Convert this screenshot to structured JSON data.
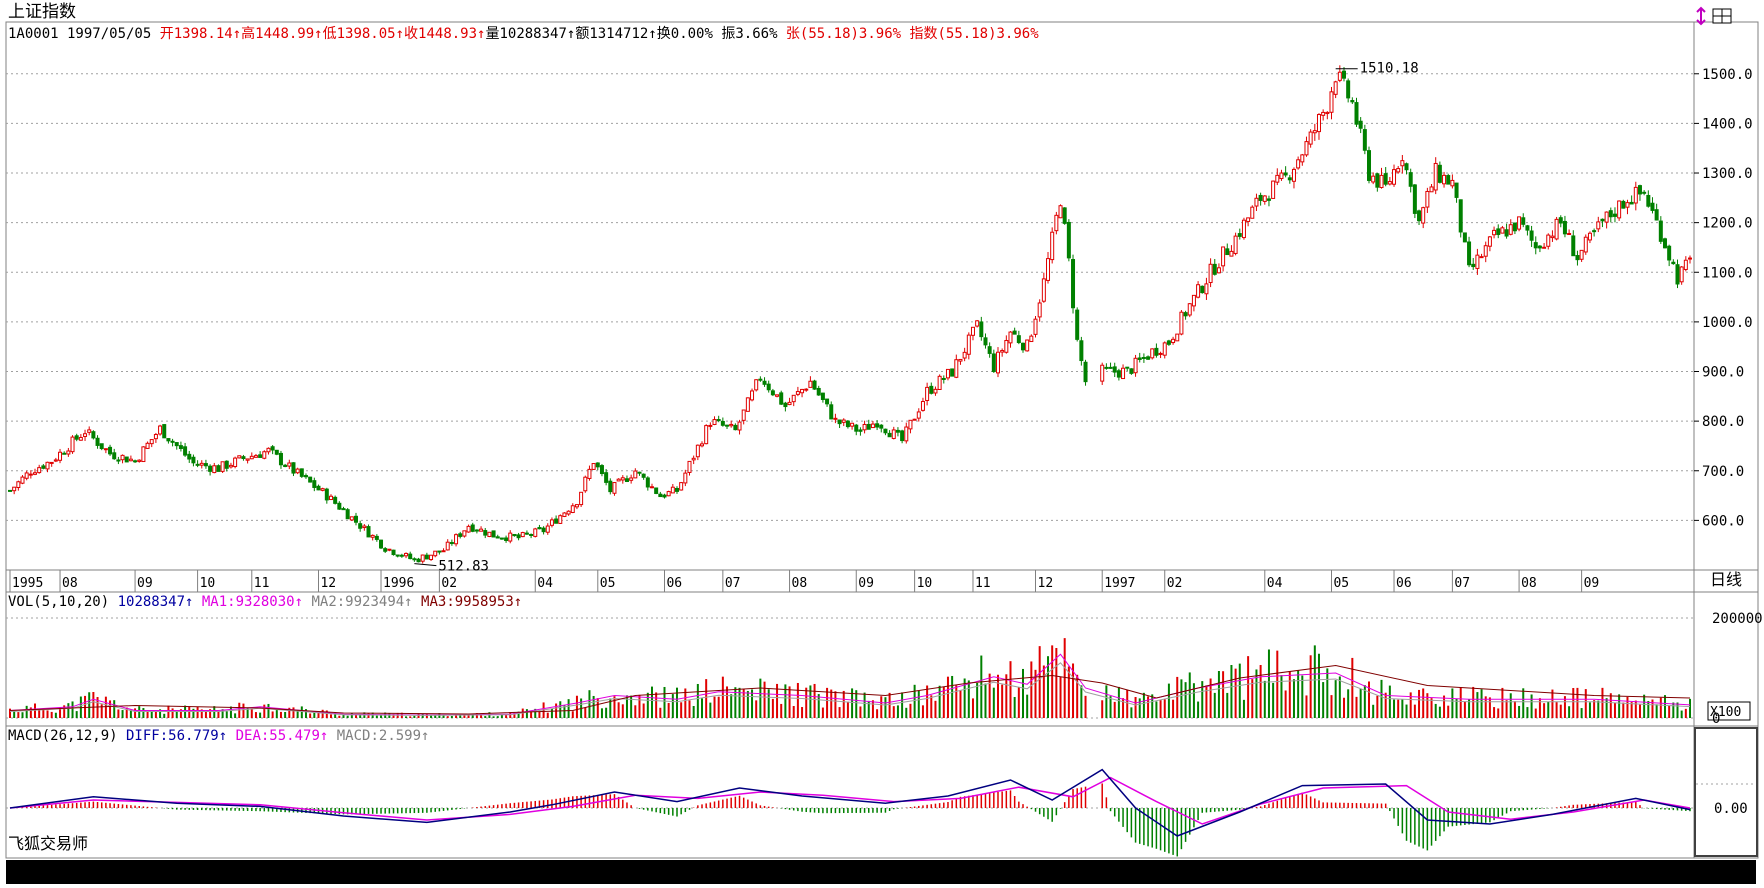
{
  "title": "上证指数",
  "info": [
    {
      "t": "1A0001 1997/05/05 ",
      "c": "k"
    },
    {
      "t": "开1398.14↑",
      "c": "r"
    },
    {
      "t": "高1448.99↑",
      "c": "r"
    },
    {
      "t": "低1398.05↑",
      "c": "r"
    },
    {
      "t": "收1448.93↑",
      "c": "r"
    },
    {
      "t": "量10288347↑",
      "c": "k"
    },
    {
      "t": "额1314712↑",
      "c": "k"
    },
    {
      "t": "换0.00%",
      "c": "k"
    },
    {
      "t": " 振3.66%",
      "c": "k"
    },
    {
      "t": " 张(55.18)3.96%",
      "c": "r"
    },
    {
      "t": " 指数(55.18)3.96%",
      "c": "r"
    }
  ],
  "vol_info": [
    {
      "t": "VOL(5,10,20)",
      "c": "k"
    },
    {
      "t": " 10288347↑",
      "c": "b"
    },
    {
      "t": " MA1:9328030↑",
      "c": "m"
    },
    {
      "t": " MA2:9923494↑",
      "c": "g"
    },
    {
      "t": " MA3:9958953↑",
      "c": "br"
    }
  ],
  "macd_info": [
    {
      "t": "MACD(26,12,9)",
      "c": "k"
    },
    {
      "t": " DIFF:56.779↑",
      "c": "b"
    },
    {
      "t": " DEA:55.479↑",
      "c": "m"
    },
    {
      "t": " MACD:2.599↑",
      "c": "g"
    }
  ],
  "brand": "飞狐交易师",
  "period_label": "日线",
  "volume_unit": "X100",
  "colors": {
    "up": "#e00000",
    "down": "#008000",
    "diff": "#000080",
    "dea": "#e000e0",
    "ma2": "#a0a0a0",
    "ma3": "#800000",
    "ma1": "#e000e0"
  },
  "chart_data": [
    {
      "type": "candlestick",
      "ylim": [
        500,
        1560
      ],
      "y_ticks": [
        "1500.0",
        "1400.0",
        "1300.0",
        "1200.0",
        "1100.0",
        "1000.0",
        "900.0",
        "800.0",
        "700.0",
        "600.0"
      ],
      "x_ticks": [
        {
          "label": "1995",
          "day": 0
        },
        {
          "label": "08",
          "day": 12
        },
        {
          "label": "09",
          "day": 30
        },
        {
          "label": "10",
          "day": 45
        },
        {
          "label": "11",
          "day": 58
        },
        {
          "label": "12",
          "day": 74
        },
        {
          "label": "1996",
          "day": 89
        },
        {
          "label": "02",
          "day": 103
        },
        {
          "label": "04",
          "day": 126
        },
        {
          "label": "05",
          "day": 141
        },
        {
          "label": "06",
          "day": 157
        },
        {
          "label": "07",
          "day": 171
        },
        {
          "label": "08",
          "day": 187
        },
        {
          "label": "09",
          "day": 203
        },
        {
          "label": "10",
          "day": 217
        },
        {
          "label": "11",
          "day": 231
        },
        {
          "label": "12",
          "day": 246
        },
        {
          "label": "1997",
          "day": 262
        },
        {
          "label": "02",
          "day": 277
        },
        {
          "label": "04",
          "day": 301
        },
        {
          "label": "05",
          "day": 317
        },
        {
          "label": "06",
          "day": 332
        },
        {
          "label": "07",
          "day": 346
        },
        {
          "label": "08",
          "day": 362
        },
        {
          "label": "09",
          "day": 377
        }
      ],
      "annotations": [
        {
          "text": "512.83",
          "day": 97,
          "value": 512.83
        },
        {
          "text": "1510.18",
          "day": 318,
          "value": 1510.18
        }
      ],
      "close_path": [
        [
          0,
          660
        ],
        [
          5,
          700
        ],
        [
          10,
          720
        ],
        [
          18,
          780
        ],
        [
          24,
          735
        ],
        [
          30,
          720
        ],
        [
          36,
          785
        ],
        [
          44,
          715
        ],
        [
          50,
          705
        ],
        [
          56,
          725
        ],
        [
          62,
          740
        ],
        [
          68,
          700
        ],
        [
          76,
          650
        ],
        [
          84,
          590
        ],
        [
          90,
          545
        ],
        [
          97,
          520
        ],
        [
          104,
          540
        ],
        [
          110,
          590
        ],
        [
          116,
          570
        ],
        [
          122,
          565
        ],
        [
          128,
          580
        ],
        [
          136,
          640
        ],
        [
          140,
          720
        ],
        [
          144,
          660
        ],
        [
          150,
          700
        ],
        [
          156,
          650
        ],
        [
          160,
          660
        ],
        [
          168,
          800
        ],
        [
          174,
          780
        ],
        [
          180,
          890
        ],
        [
          186,
          830
        ],
        [
          192,
          880
        ],
        [
          198,
          800
        ],
        [
          204,
          780
        ],
        [
          208,
          800
        ],
        [
          214,
          760
        ],
        [
          220,
          860
        ],
        [
          226,
          900
        ],
        [
          232,
          990
        ],
        [
          236,
          910
        ],
        [
          240,
          980
        ],
        [
          244,
          950
        ],
        [
          248,
          1080
        ],
        [
          252,
          1250
        ],
        [
          254,
          1120
        ],
        [
          256,
          960
        ],
        [
          258,
          880
        ],
        [
          262,
          900
        ],
        [
          268,
          900
        ],
        [
          274,
          940
        ],
        [
          278,
          960
        ],
        [
          282,
          1020
        ],
        [
          288,
          1100
        ],
        [
          294,
          1170
        ],
        [
          300,
          1250
        ],
        [
          306,
          1290
        ],
        [
          312,
          1370
        ],
        [
          316,
          1440
        ],
        [
          318,
          1500
        ],
        [
          322,
          1440
        ],
        [
          326,
          1300
        ],
        [
          330,
          1270
        ],
        [
          334,
          1340
        ],
        [
          338,
          1200
        ],
        [
          342,
          1300
        ],
        [
          346,
          1280
        ],
        [
          350,
          1100
        ],
        [
          356,
          1170
        ],
        [
          362,
          1200
        ],
        [
          366,
          1150
        ],
        [
          372,
          1200
        ],
        [
          376,
          1130
        ],
        [
          382,
          1200
        ],
        [
          388,
          1250
        ],
        [
          392,
          1260
        ],
        [
          396,
          1180
        ],
        [
          400,
          1090
        ],
        [
          403,
          1120
        ]
      ],
      "up_color": "#e00000",
      "down_color": "#008000"
    },
    {
      "type": "bar",
      "name": "volume",
      "ylim": [
        0,
        200000
      ],
      "y_ticks": [
        "200000",
        "0"
      ],
      "envelope": [
        [
          0,
          20000
        ],
        [
          15,
          30000
        ],
        [
          20,
          50000
        ],
        [
          30,
          20000
        ],
        [
          50,
          20000
        ],
        [
          60,
          30000
        ],
        [
          80,
          10000
        ],
        [
          100,
          8000
        ],
        [
          120,
          10000
        ],
        [
          136,
          40000
        ],
        [
          145,
          60000
        ],
        [
          160,
          50000
        ],
        [
          170,
          70000
        ],
        [
          190,
          60000
        ],
        [
          210,
          40000
        ],
        [
          220,
          60000
        ],
        [
          236,
          110000
        ],
        [
          244,
          90000
        ],
        [
          252,
          170000
        ],
        [
          258,
          80000
        ],
        [
          270,
          40000
        ],
        [
          285,
          80000
        ],
        [
          300,
          110000
        ],
        [
          318,
          120000
        ],
        [
          330,
          60000
        ],
        [
          350,
          50000
        ],
        [
          380,
          50000
        ],
        [
          403,
          35000
        ]
      ],
      "ma3_path": [
        [
          0,
          15000
        ],
        [
          30,
          25000
        ],
        [
          60,
          20000
        ],
        [
          80,
          10000
        ],
        [
          110,
          8000
        ],
        [
          135,
          15000
        ],
        [
          150,
          45000
        ],
        [
          180,
          60000
        ],
        [
          210,
          45000
        ],
        [
          230,
          70000
        ],
        [
          250,
          85000
        ],
        [
          262,
          70000
        ],
        [
          275,
          40000
        ],
        [
          295,
          80000
        ],
        [
          318,
          105000
        ],
        [
          340,
          65000
        ],
        [
          380,
          45000
        ],
        [
          403,
          40000
        ]
      ]
    },
    {
      "type": "line",
      "name": "MACD",
      "y_ticks": [
        "0.00"
      ],
      "ylim": [
        -70,
        70
      ],
      "diff_path": [
        [
          0,
          0
        ],
        [
          20,
          14
        ],
        [
          40,
          6
        ],
        [
          60,
          2
        ],
        [
          80,
          -10
        ],
        [
          100,
          -18
        ],
        [
          120,
          -5
        ],
        [
          130,
          4
        ],
        [
          145,
          20
        ],
        [
          160,
          8
        ],
        [
          175,
          25
        ],
        [
          190,
          15
        ],
        [
          210,
          6
        ],
        [
          225,
          15
        ],
        [
          240,
          35
        ],
        [
          250,
          10
        ],
        [
          262,
          48
        ],
        [
          270,
          0
        ],
        [
          280,
          -35
        ],
        [
          295,
          -5
        ],
        [
          310,
          28
        ],
        [
          330,
          30
        ],
        [
          340,
          -15
        ],
        [
          355,
          -20
        ],
        [
          370,
          -8
        ],
        [
          390,
          12
        ],
        [
          403,
          -2
        ]
      ],
      "dea_path": [
        [
          0,
          0
        ],
        [
          20,
          10
        ],
        [
          40,
          7
        ],
        [
          60,
          4
        ],
        [
          80,
          -6
        ],
        [
          100,
          -15
        ],
        [
          120,
          -8
        ],
        [
          135,
          2
        ],
        [
          150,
          16
        ],
        [
          165,
          12
        ],
        [
          180,
          20
        ],
        [
          195,
          16
        ],
        [
          212,
          8
        ],
        [
          228,
          12
        ],
        [
          242,
          26
        ],
        [
          255,
          14
        ],
        [
          264,
          38
        ],
        [
          275,
          8
        ],
        [
          286,
          -20
        ],
        [
          300,
          5
        ],
        [
          315,
          25
        ],
        [
          335,
          28
        ],
        [
          345,
          -5
        ],
        [
          360,
          -14
        ],
        [
          375,
          -5
        ],
        [
          392,
          10
        ],
        [
          403,
          0
        ]
      ]
    }
  ]
}
